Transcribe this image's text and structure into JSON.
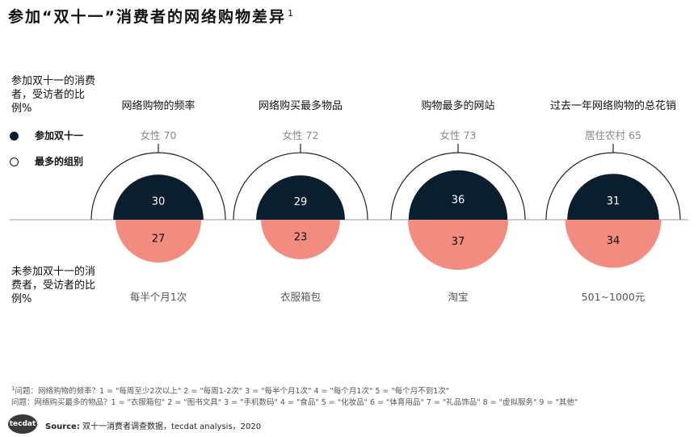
{
  "title": "参加“双十一”消费者的网络购物差异",
  "title_superscript": "1",
  "left_labels": {
    "top": "参加双十一的消费者，受访者的比例%",
    "bottom": "未参加双十一的消费者，受访者的比例%"
  },
  "legend": [
    {
      "marker": "filled-circle",
      "label": "参加双十一"
    },
    {
      "marker": "open-circle",
      "label": "最多的组别"
    }
  ],
  "colors": {
    "participants": "#0b1e2d",
    "non_participants": "#f28b80",
    "arc": "#222222",
    "divider": "#999999"
  },
  "chart_data": {
    "type": "semicircle-comparison",
    "panels": [
      {
        "title": "网络购物的频率",
        "top_group": "女性 70",
        "top_group_value": 70,
        "participants": 30,
        "non_participants": 27,
        "bottom_group": "每半个月1次"
      },
      {
        "title": "网络购买最多物品",
        "top_group": "女性 72",
        "top_group_value": 72,
        "participants": 29,
        "non_participants": 23,
        "bottom_group": "衣服箱包"
      },
      {
        "title": "购物最多的网站",
        "top_group": "女性 73",
        "top_group_value": 73,
        "participants": 36,
        "non_participants": 37,
        "bottom_group": "淘宝"
      },
      {
        "title": "过去一年网络购物的总花销",
        "top_group": "居住农村 65",
        "top_group_value": 65,
        "participants": 31,
        "non_participants": 34,
        "bottom_group": "501~1000元"
      }
    ]
  },
  "footnote": {
    "marker": "1",
    "line1": "问题：网络购物的频率？1 = \"每周至少2次以上\" 2 = \"每周1-2次\" 3 = \"每半个月1次\" 4 = \"每个月1次\"  5 = \"每个月不到1次\"",
    "line2": "问题：网络购买最多的物品？1 = \"衣服箱包\" 2 = \"图书文具\" 3 = \"手机数码\"  4 = \"食品\" 5 = \"化妆品\" 6 = \"体育用品\" 7 = \"礼品饰品\" 8 = \"虚拟服务\" 9 = \"其他\""
  },
  "source": {
    "label": "Source:",
    "text": "双十一消费者调查数据，tecdat analysis，2020"
  },
  "logo_text": "tecdat"
}
